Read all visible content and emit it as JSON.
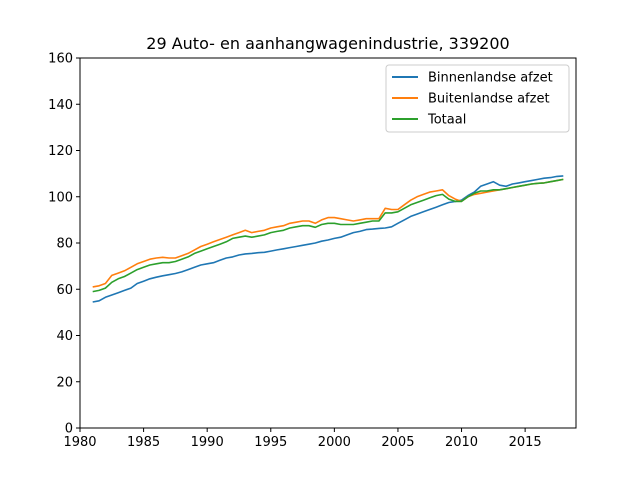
{
  "chart_data": {
    "type": "line",
    "title": "29 Auto- en aanhangwagenindustrie, 339200",
    "xlabel": "",
    "ylabel": "",
    "xlim": [
      1980,
      2019
    ],
    "ylim": [
      0,
      160
    ],
    "xticks": [
      1980,
      1985,
      1990,
      1995,
      2000,
      2005,
      2010,
      2015
    ],
    "yticks": [
      0,
      20,
      40,
      60,
      80,
      100,
      120,
      140,
      160
    ],
    "grid": false,
    "legend_position": "top-right",
    "x": [
      1981.0,
      1981.5,
      1982.0,
      1982.5,
      1983.0,
      1983.5,
      1984.0,
      1984.5,
      1985.0,
      1985.5,
      1986.0,
      1986.5,
      1987.0,
      1987.5,
      1988.0,
      1988.5,
      1989.0,
      1989.5,
      1990.0,
      1990.5,
      1991.0,
      1991.5,
      1992.0,
      1992.5,
      1993.0,
      1993.5,
      1994.0,
      1994.5,
      1995.0,
      1995.5,
      1996.0,
      1996.5,
      1997.0,
      1997.5,
      1998.0,
      1998.5,
      1999.0,
      1999.5,
      2000.0,
      2000.5,
      2001.0,
      2001.5,
      2002.0,
      2002.5,
      2003.0,
      2003.5,
      2004.0,
      2004.5,
      2005.0,
      2005.5,
      2006.0,
      2006.5,
      2007.0,
      2007.5,
      2008.0,
      2008.5,
      2009.0,
      2009.5,
      2010.0,
      2010.5,
      2011.0,
      2011.5,
      2012.0,
      2012.5,
      2013.0,
      2013.5,
      2014.0,
      2014.5,
      2015.0,
      2015.5,
      2016.0,
      2016.5,
      2017.0,
      2017.5,
      2018.0
    ],
    "series": [
      {
        "name": "Binnenlandse afzet",
        "color": "#1f77b4",
        "values": [
          54.5,
          55.0,
          56.5,
          57.5,
          58.5,
          59.5,
          60.5,
          62.5,
          63.5,
          64.5,
          65.2,
          65.8,
          66.3,
          66.8,
          67.5,
          68.5,
          69.5,
          70.5,
          71.0,
          71.5,
          72.5,
          73.5,
          74.0,
          74.8,
          75.3,
          75.5,
          75.8,
          76.0,
          76.5,
          77.0,
          77.5,
          78.0,
          78.5,
          79.0,
          79.5,
          80.0,
          80.8,
          81.3,
          82.0,
          82.5,
          83.5,
          84.5,
          85.0,
          85.8,
          86.0,
          86.3,
          86.5,
          87.0,
          88.5,
          90.0,
          91.5,
          92.5,
          93.5,
          94.5,
          95.5,
          96.5,
          97.5,
          98.0,
          98.5,
          100.5,
          102.0,
          104.5,
          105.5,
          106.5,
          105.0,
          104.5,
          105.5,
          106.0,
          106.5,
          107.0,
          107.5,
          108.0,
          108.3,
          108.8,
          109.0
        ]
      },
      {
        "name": "Buitenlandse afzet",
        "color": "#ff7f0e",
        "values": [
          61.0,
          61.5,
          62.5,
          66.0,
          67.0,
          68.0,
          69.5,
          71.0,
          72.0,
          73.0,
          73.5,
          73.8,
          73.5,
          73.5,
          74.5,
          75.5,
          77.0,
          78.5,
          79.5,
          80.5,
          81.5,
          82.5,
          83.5,
          84.5,
          85.5,
          84.5,
          85.0,
          85.5,
          86.5,
          87.0,
          87.5,
          88.5,
          89.0,
          89.5,
          89.5,
          88.5,
          90.0,
          91.0,
          91.0,
          90.5,
          90.0,
          89.5,
          90.0,
          90.5,
          90.5,
          90.5,
          95.0,
          94.5,
          94.5,
          96.5,
          98.5,
          100.0,
          101.0,
          102.0,
          102.5,
          103.0,
          100.5,
          99.0,
          98.0,
          100.0,
          101.0,
          101.5,
          102.0,
          102.5,
          103.0,
          103.5,
          104.0,
          104.5,
          105.0,
          105.5,
          105.8,
          106.0,
          106.5,
          107.0,
          107.5
        ]
      },
      {
        "name": "Totaal",
        "color": "#2ca02c",
        "values": [
          59.0,
          59.5,
          60.5,
          63.0,
          64.5,
          65.5,
          67.0,
          68.5,
          69.5,
          70.5,
          71.0,
          71.5,
          71.5,
          72.0,
          73.0,
          74.0,
          75.5,
          76.5,
          77.5,
          78.5,
          79.5,
          80.5,
          82.0,
          82.5,
          83.0,
          82.5,
          83.0,
          83.5,
          84.5,
          85.0,
          85.5,
          86.5,
          87.0,
          87.5,
          87.5,
          86.8,
          88.0,
          88.5,
          88.5,
          88.0,
          88.0,
          88.0,
          88.5,
          89.0,
          89.5,
          89.5,
          93.0,
          93.0,
          93.5,
          95.0,
          96.5,
          97.5,
          98.5,
          99.5,
          100.5,
          101.0,
          99.0,
          98.0,
          98.0,
          100.0,
          101.5,
          102.5,
          102.5,
          103.0,
          103.0,
          103.5,
          104.0,
          104.5,
          105.0,
          105.5,
          105.8,
          106.0,
          106.5,
          107.0,
          107.5
        ]
      }
    ]
  }
}
